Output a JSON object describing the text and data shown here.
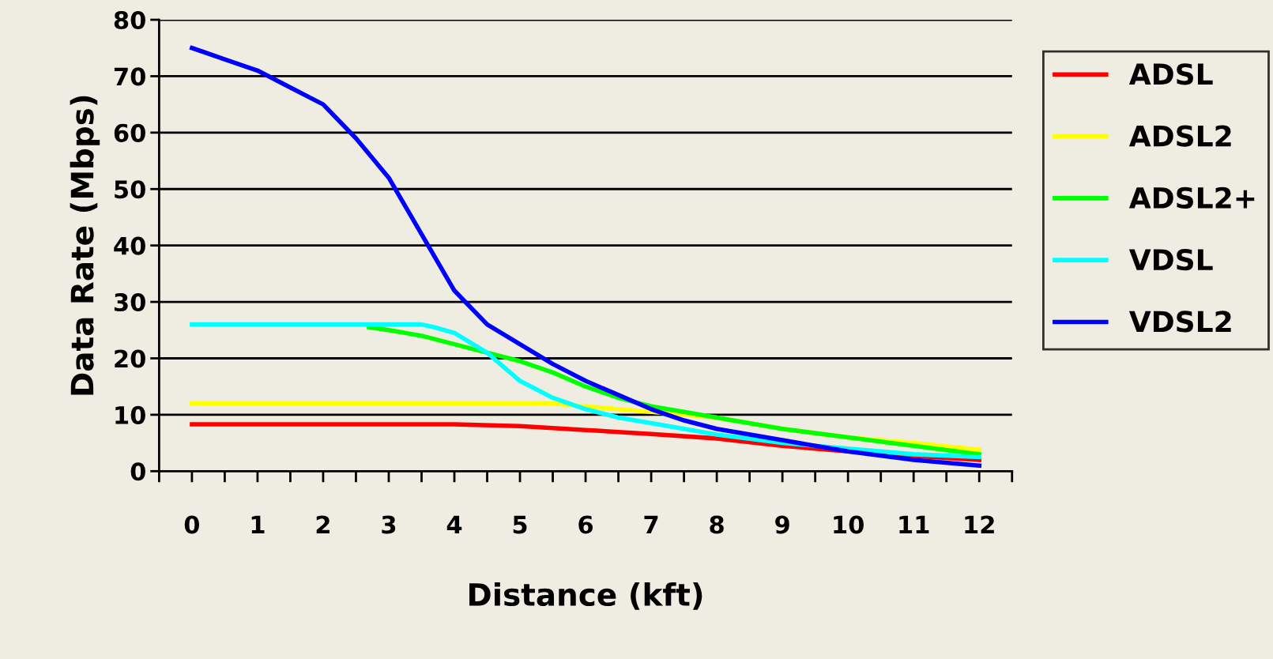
{
  "chart_data": {
    "type": "line",
    "xlabel": "Distance (kft)",
    "ylabel": "Data Rate (Mbps)",
    "xlim": [
      -0.5,
      12.5
    ],
    "xticks": [
      {
        "value": -0.5,
        "label": null
      },
      {
        "value": 0,
        "label": "0"
      },
      {
        "value": 0.5,
        "label": null
      },
      {
        "value": 1,
        "label": "1"
      },
      {
        "value": 1.5,
        "label": null
      },
      {
        "value": 2,
        "label": "2"
      },
      {
        "value": 2.5,
        "label": null
      },
      {
        "value": 3,
        "label": "3"
      },
      {
        "value": 3.5,
        "label": null
      },
      {
        "value": 4,
        "label": "4"
      },
      {
        "value": 4.5,
        "label": null
      },
      {
        "value": 5,
        "label": "5"
      },
      {
        "value": 5.5,
        "label": null
      },
      {
        "value": 6,
        "label": "6"
      },
      {
        "value": 6.5,
        "label": null
      },
      {
        "value": 7,
        "label": "7"
      },
      {
        "value": 7.5,
        "label": null
      },
      {
        "value": 8,
        "label": "8"
      },
      {
        "value": 8.5,
        "label": null
      },
      {
        "value": 9,
        "label": "9"
      },
      {
        "value": 9.5,
        "label": null
      },
      {
        "value": 10,
        "label": "10"
      },
      {
        "value": 10.5,
        "label": null
      },
      {
        "value": 11,
        "label": "11"
      },
      {
        "value": 11.5,
        "label": null
      },
      {
        "value": 12,
        "label": "12"
      },
      {
        "value": 12.5,
        "label": null
      }
    ],
    "ylim": [
      0,
      80
    ],
    "yticks": [
      0,
      10,
      20,
      30,
      40,
      50,
      60,
      70,
      80
    ],
    "grid": "y",
    "legend": "right",
    "marker": "none",
    "line_style": "solid",
    "series": [
      {
        "name": "ADSL",
        "color": "#ff0000",
        "x": [
          0,
          1,
          2,
          3,
          4,
          5,
          6,
          7,
          8,
          9,
          10,
          11,
          12
        ],
        "values": [
          8.3,
          8.3,
          8.3,
          8.3,
          8.3,
          8.0,
          7.3,
          6.6,
          5.8,
          4.5,
          3.5,
          2.7,
          2.0
        ]
      },
      {
        "name": "ADSL2",
        "color": "#ffff00",
        "x": [
          0,
          1,
          2,
          3,
          4,
          5,
          5.5,
          6,
          7,
          8,
          9,
          10,
          11,
          12
        ],
        "values": [
          12,
          12,
          12,
          12,
          12,
          12,
          12,
          11.5,
          10.5,
          9.5,
          7.5,
          6,
          5,
          3.8
        ]
      },
      {
        "name": "ADSL2+",
        "color": "#00ff00",
        "x": [
          2.7,
          3,
          3.5,
          4,
          4.5,
          5,
          5.5,
          6,
          6.5,
          7,
          7.5,
          8,
          9,
          10,
          11,
          12
        ],
        "values": [
          25.5,
          25,
          24,
          22.5,
          21,
          19.5,
          17.5,
          15,
          13,
          11.5,
          10.5,
          9.5,
          7.5,
          6,
          4.5,
          3
        ]
      },
      {
        "name": "VDSL",
        "color": "#00ffff",
        "x": [
          0,
          1,
          2,
          3,
          3.5,
          3.7,
          4,
          4.5,
          5,
          5.5,
          6,
          6.5,
          7,
          8,
          9,
          10,
          11,
          12
        ],
        "values": [
          26,
          26,
          26,
          26,
          26,
          25.5,
          24.5,
          21,
          16,
          13,
          11,
          9.5,
          8.5,
          6.5,
          5,
          4,
          3,
          2.5
        ]
      },
      {
        "name": "VDSL2",
        "color": "#0000ff",
        "x": [
          0,
          0.5,
          1,
          1.5,
          2,
          2.5,
          3,
          3.5,
          4,
          4.5,
          5,
          5.5,
          6,
          6.5,
          7,
          7.5,
          8,
          9,
          10,
          11,
          12
        ],
        "values": [
          75,
          73,
          71,
          68,
          65,
          59,
          52,
          42,
          32,
          26,
          22.5,
          19,
          16,
          13.5,
          11,
          9,
          7.5,
          5.5,
          3.5,
          2,
          1
        ]
      }
    ]
  }
}
